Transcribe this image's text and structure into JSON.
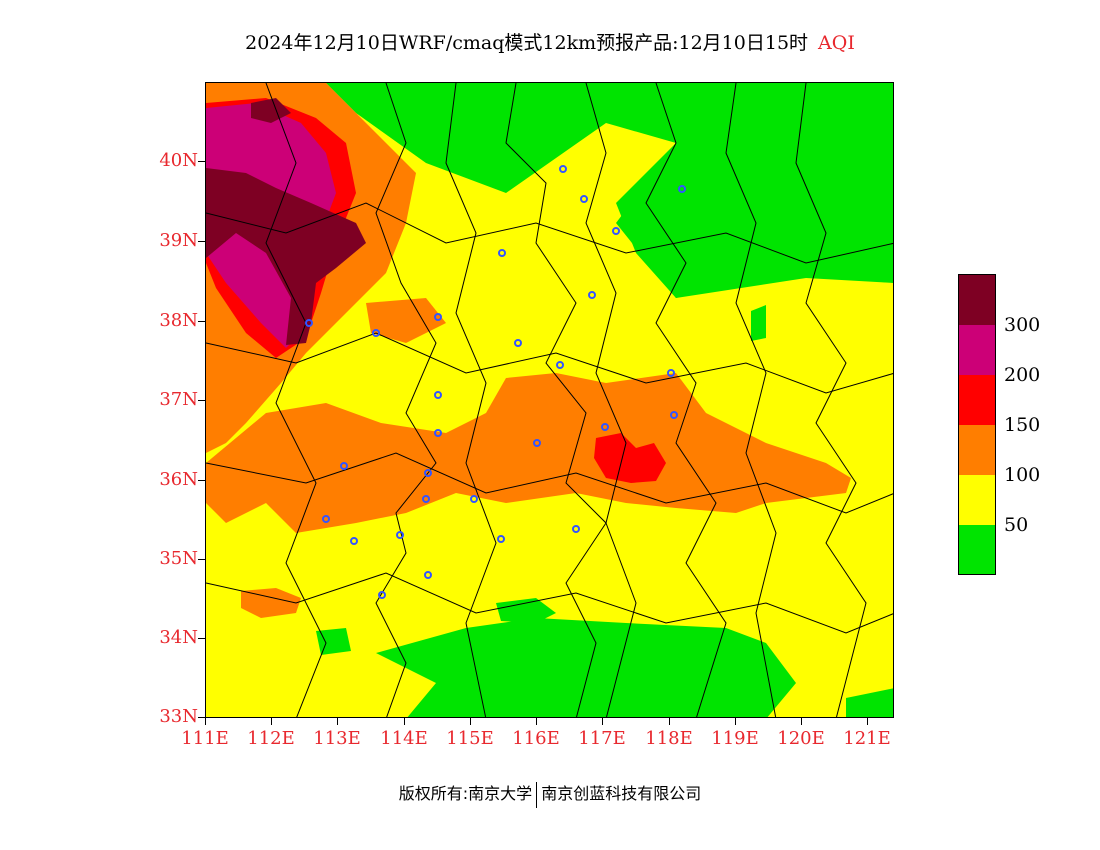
{
  "header": {
    "title": "2024年12月10日WRF/cmaq模式12km预报产品:12月10日15时",
    "product": "AQI"
  },
  "map": {
    "lat_labels": [
      "40N",
      "39N",
      "38N",
      "37N",
      "36N",
      "35N",
      "34N",
      "33N"
    ],
    "lon_labels": [
      "111E",
      "112E",
      "113E",
      "114E",
      "115E",
      "116E",
      "117E",
      "118E",
      "119E",
      "120E",
      "121E"
    ],
    "lat_range": [
      33,
      41
    ],
    "lon_range": [
      111,
      121.4
    ],
    "colors": {
      "good": "#00e400",
      "moderate": "#ffff00",
      "unhealthy_sensitive": "#ff7e00",
      "unhealthy": "#ff0000",
      "very_unhealthy": "#cc0077",
      "hazardous": "#7e0023",
      "station_marker": "#3355ff",
      "axis_label": "#e8282e"
    }
  },
  "legend": {
    "labels": [
      "300",
      "200",
      "150",
      "100",
      "50"
    ],
    "swatch_colors": [
      "#7e0023",
      "#cc0077",
      "#ff0000",
      "#ff7e00",
      "#ffff00",
      "#00e400"
    ]
  },
  "footer": {
    "copyright_left": "版权所有:南京大学",
    "copyright_right": "南京创蓝科技有限公司"
  }
}
